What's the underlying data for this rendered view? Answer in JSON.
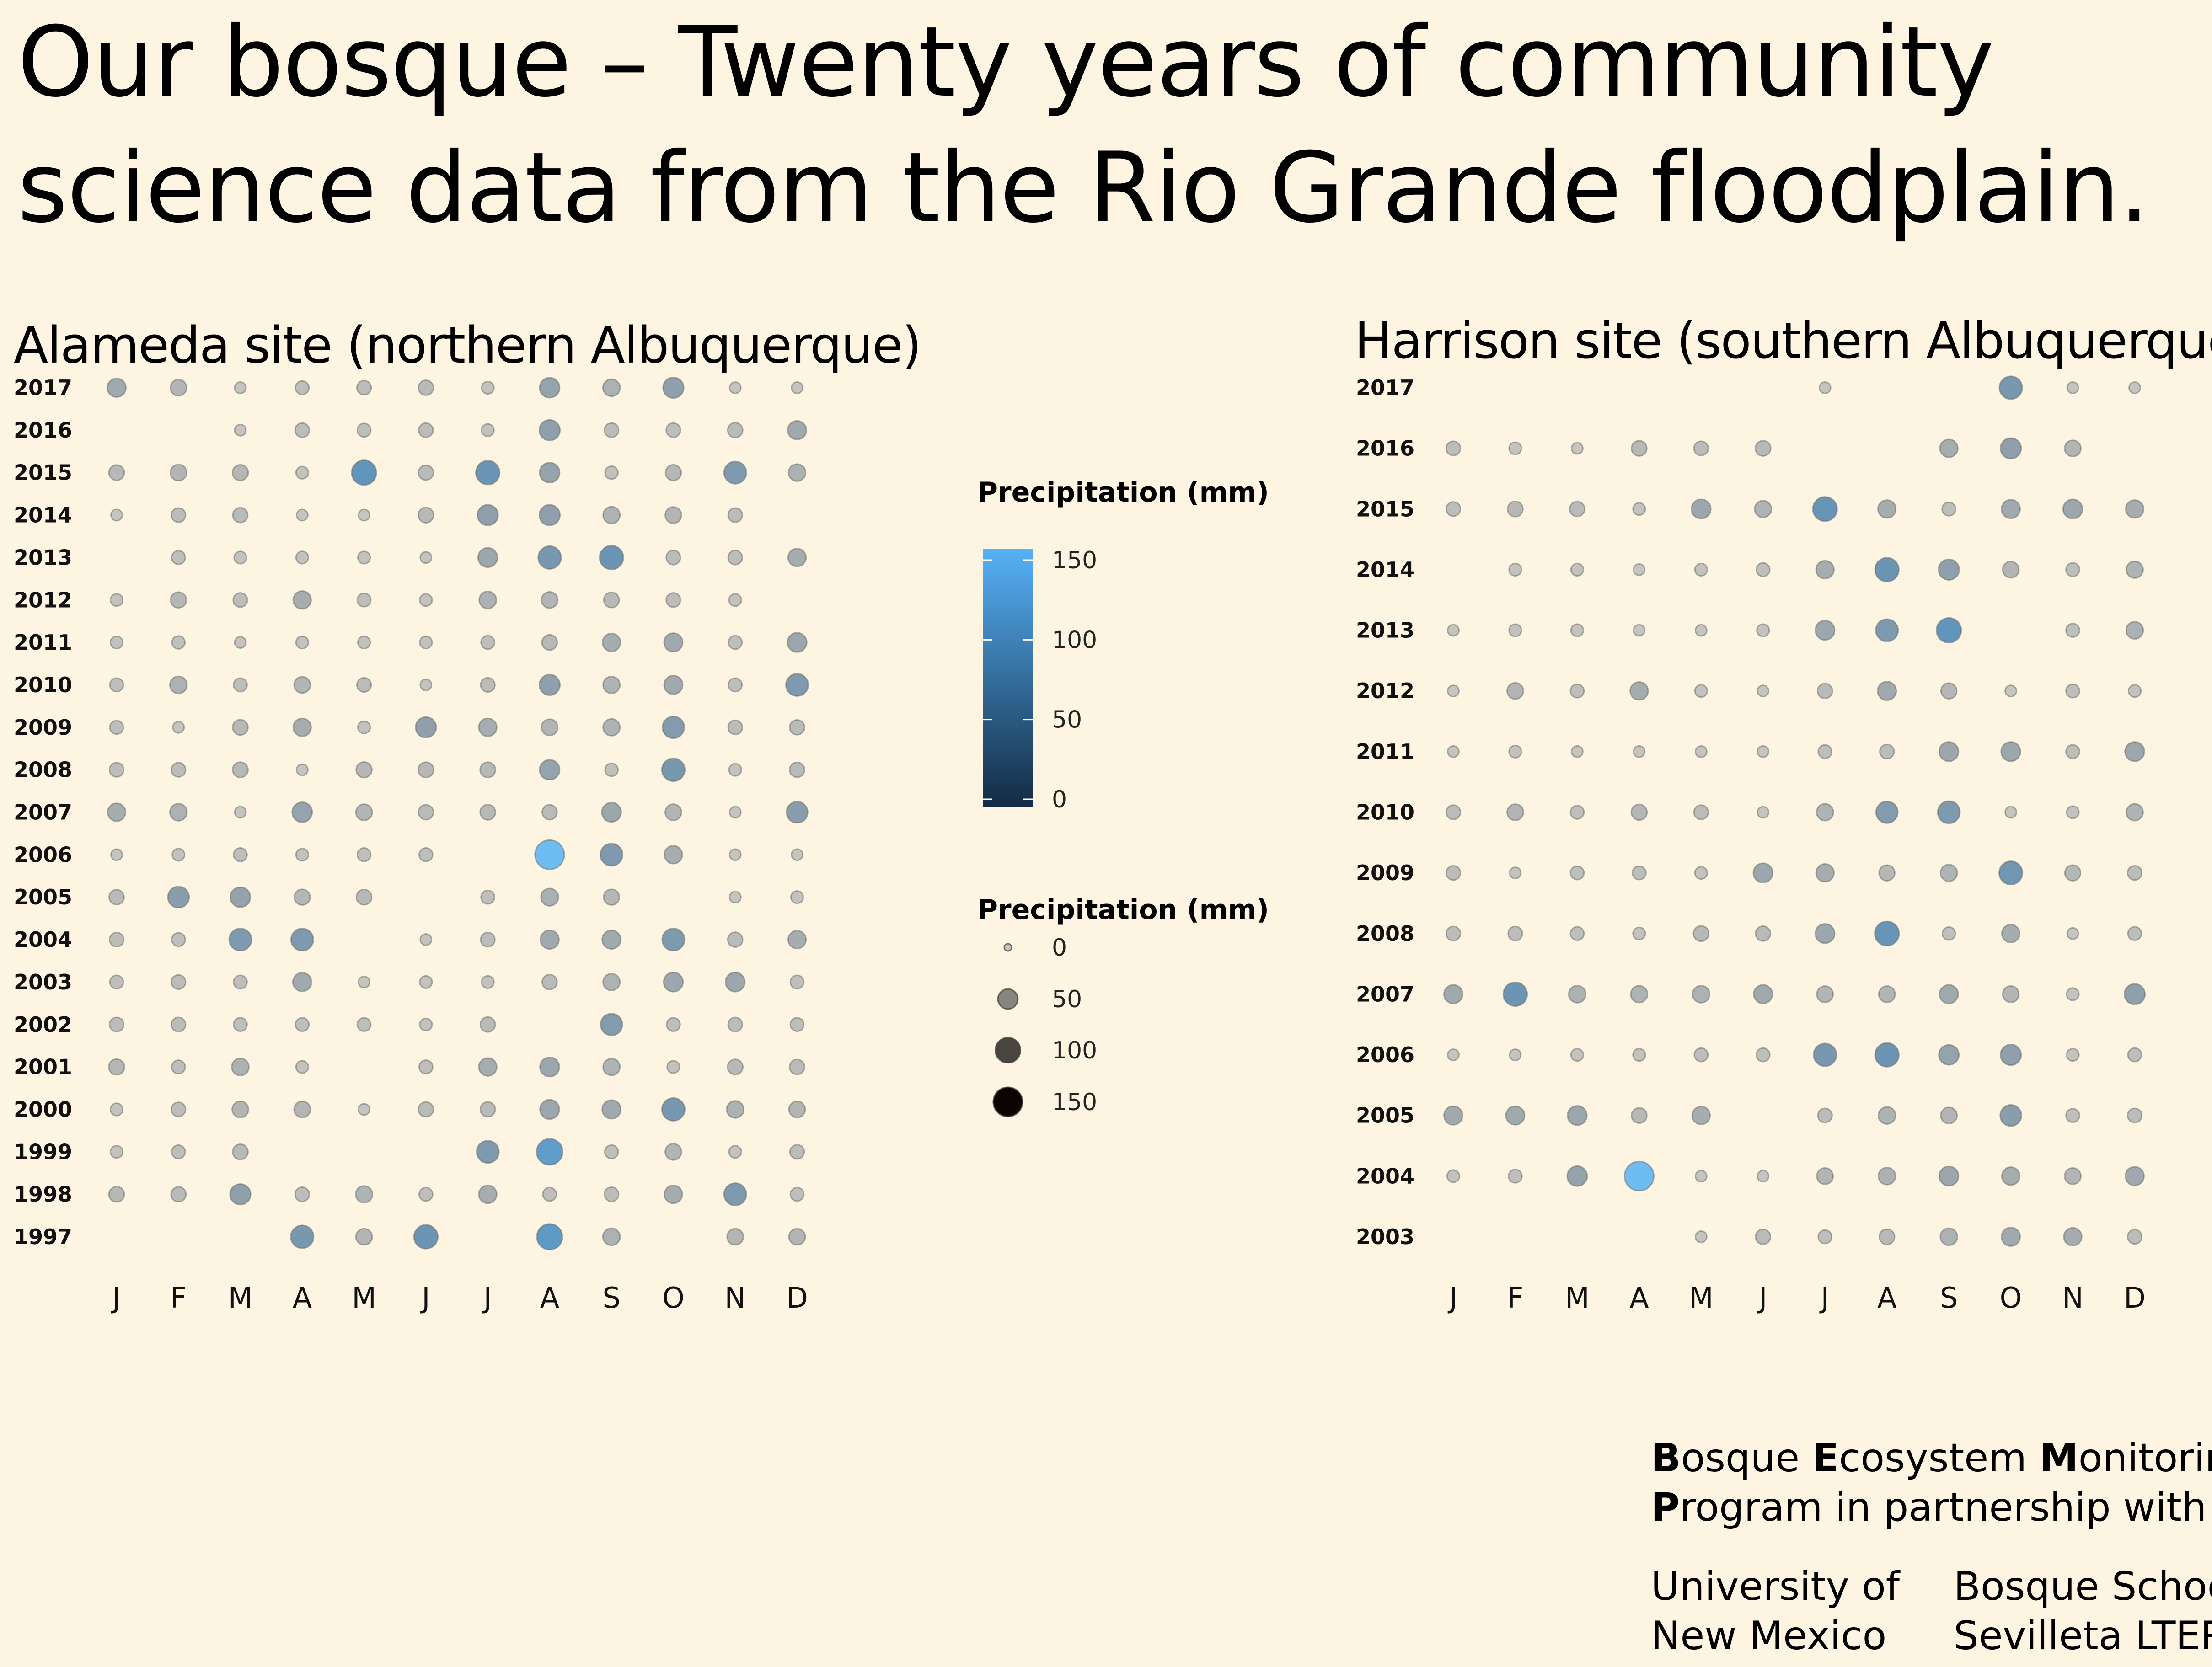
{
  "title": {
    "line1": "Our bosque – Twenty years of community",
    "line2": "science data from the Rio Grande floodplain."
  },
  "chart_data": [
    {
      "type": "scatter",
      "title": "Alameda site (northern Albuquerque)",
      "xlabel": "",
      "ylabel": "",
      "x_categories": [
        "J",
        "F",
        "M",
        "A",
        "M",
        "J",
        "J",
        "A",
        "S",
        "O",
        "N",
        "D"
      ],
      "years": [
        2017,
        2016,
        2015,
        2014,
        2013,
        2012,
        2011,
        2010,
        2009,
        2008,
        2007,
        2006,
        2005,
        2004,
        2003,
        2002,
        2001,
        2000,
        1999,
        1998,
        1997
      ],
      "value_unit": "mm",
      "values": [
        [
          40,
          25,
          5,
          12,
          15,
          18,
          8,
          50,
          30,
          55,
          5,
          5
        ],
        [
          null,
          null,
          5,
          15,
          12,
          15,
          8,
          55,
          15,
          15,
          18,
          40
        ],
        [
          20,
          25,
          22,
          8,
          95,
          18,
          85,
          50,
          10,
          22,
          70,
          30
        ],
        [
          5,
          15,
          18,
          5,
          5,
          20,
          55,
          55,
          28,
          25,
          15,
          null
        ],
        [
          null,
          12,
          8,
          8,
          8,
          5,
          45,
          75,
          85,
          15,
          15,
          35
        ],
        [
          8,
          22,
          15,
          35,
          12,
          8,
          30,
          25,
          20,
          15,
          8,
          null
        ],
        [
          8,
          10,
          5,
          8,
          8,
          8,
          12,
          20,
          35,
          40,
          12,
          45
        ],
        [
          12,
          30,
          12,
          25,
          15,
          5,
          15,
          55,
          28,
          40,
          12,
          70
        ],
        [
          12,
          5,
          20,
          35,
          8,
          55,
          35,
          25,
          28,
          65,
          15,
          18
        ],
        [
          15,
          15,
          20,
          5,
          22,
          20,
          20,
          50,
          10,
          75,
          8,
          18
        ],
        [
          35,
          30,
          5,
          50,
          25,
          18,
          20,
          18,
          45,
          25,
          5,
          60
        ],
        [
          5,
          8,
          12,
          8,
          12,
          12,
          null,
          150,
          70,
          35,
          5,
          5
        ],
        [
          18,
          60,
          50,
          22,
          20,
          null,
          12,
          32,
          22,
          null,
          5,
          8
        ],
        [
          15,
          12,
          70,
          70,
          null,
          5,
          15,
          40,
          40,
          70,
          18,
          35
        ],
        [
          12,
          15,
          12,
          40,
          5,
          8,
          8,
          18,
          28,
          45,
          45,
          12
        ],
        [
          15,
          15,
          12,
          12,
          12,
          8,
          18,
          null,
          65,
          12,
          15,
          12
        ],
        [
          22,
          12,
          30,
          8,
          null,
          12,
          35,
          45,
          28,
          8,
          20,
          18
        ],
        [
          8,
          15,
          25,
          25,
          5,
          18,
          18,
          45,
          40,
          75,
          30,
          25
        ],
        [
          8,
          12,
          20,
          null,
          null,
          null,
          70,
          110,
          12,
          25,
          8,
          15
        ],
        [
          20,
          18,
          55,
          15,
          28,
          12,
          35,
          12,
          15,
          35,
          70,
          12
        ],
        [
          null,
          null,
          null,
          75,
          25,
          85,
          null,
          105,
          30,
          null,
          25,
          25
        ]
      ]
    },
    {
      "type": "scatter",
      "title": "Harrison site (southern Albuquerque)",
      "xlabel": "",
      "ylabel": "",
      "x_categories": [
        "J",
        "F",
        "M",
        "A",
        "M",
        "J",
        "J",
        "A",
        "S",
        "O",
        "N",
        "D"
      ],
      "years": [
        2017,
        2016,
        2015,
        2014,
        2013,
        2012,
        2011,
        2010,
        2009,
        2008,
        2007,
        2006,
        2005,
        2004,
        2003
      ],
      "value_unit": "mm",
      "values": [
        [
          null,
          null,
          null,
          null,
          null,
          null,
          5,
          null,
          null,
          75,
          5,
          5
        ],
        [
          15,
          8,
          5,
          20,
          15,
          20,
          null,
          null,
          35,
          55,
          25,
          null
        ],
        [
          15,
          20,
          18,
          8,
          45,
          28,
          90,
          35,
          12,
          40,
          45,
          35
        ],
        [
          null,
          8,
          8,
          5,
          8,
          12,
          35,
          85,
          55,
          25,
          12,
          28
        ],
        [
          5,
          8,
          8,
          5,
          5,
          8,
          45,
          70,
          95,
          null,
          12,
          30
        ],
        [
          5,
          25,
          12,
          35,
          8,
          5,
          18,
          40,
          22,
          5,
          12,
          8
        ],
        [
          5,
          8,
          5,
          5,
          5,
          5,
          12,
          15,
          45,
          45,
          12,
          45
        ],
        [
          15,
          25,
          12,
          22,
          15,
          5,
          28,
          65,
          70,
          5,
          8,
          28
        ],
        [
          15,
          5,
          12,
          12,
          8,
          45,
          35,
          22,
          28,
          80,
          22,
          15
        ],
        [
          15,
          15,
          12,
          8,
          20,
          18,
          45,
          90,
          10,
          35,
          5,
          12
        ],
        [
          40,
          85,
          30,
          28,
          30,
          40,
          25,
          25,
          40,
          25,
          8,
          55
        ],
        [
          5,
          5,
          8,
          8,
          12,
          12,
          75,
          85,
          50,
          55,
          8,
          12
        ],
        [
          40,
          40,
          45,
          20,
          35,
          null,
          15,
          30,
          25,
          60,
          12,
          15
        ],
        [
          8,
          12,
          50,
          150,
          5,
          5,
          25,
          30,
          45,
          35,
          25,
          40
        ],
        [
          null,
          null,
          null,
          null,
          5,
          18,
          12,
          20,
          30,
          40,
          35,
          15
        ]
      ]
    }
  ],
  "legend_color": {
    "title": "Precipitation (mm)",
    "ticks": [
      "150",
      "100",
      "50",
      "0"
    ],
    "color_low": "#132B43",
    "color_high": "#56B1F7"
  },
  "legend_size": {
    "title": "Precipitation (mm)",
    "labels": [
      "0",
      "50",
      "100",
      "150"
    ],
    "values": [
      0,
      50,
      100,
      150
    ]
  },
  "credits": {
    "b1": "B",
    "r1": "osque ",
    "b2": "E",
    "r2": "cosystem ",
    "b3": "M",
    "r3": "onitoring",
    "b4": "P",
    "r4": "rogram in partnership with",
    "unm1": "University of",
    "unm2": "New Mexico",
    "bs1": "Bosque School",
    "bs2": "Sevilleta LTER"
  }
}
